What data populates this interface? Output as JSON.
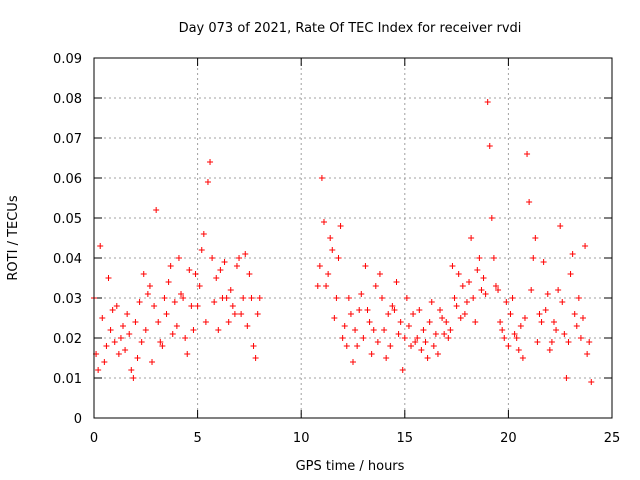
{
  "chart_data": {
    "type": "scatter",
    "title": "Day 073 of 2021, Rate Of TEC Index for receiver rvdi",
    "xlabel": "GPS time / hours",
    "ylabel": "ROTI / TECUs",
    "xlim": [
      0,
      25
    ],
    "ylim": [
      0,
      0.09
    ],
    "x_ticks": [
      "0",
      "5",
      "10",
      "15",
      "20",
      "25"
    ],
    "y_ticks": [
      "0",
      "0.01",
      "0.02",
      "0.03",
      "0.04",
      "0.05",
      "0.06",
      "0.07",
      "0.08",
      "0.09"
    ],
    "grid": true,
    "legend": false,
    "marker": "+",
    "color": "#ff0000",
    "series": [
      {
        "x": [
          0.0,
          0.1,
          0.2,
          0.3,
          0.4,
          0.5,
          0.6,
          0.7,
          0.8,
          0.9,
          1.0,
          1.1,
          1.2,
          1.3,
          1.4,
          1.5,
          1.6,
          1.7,
          1.8,
          1.9,
          2.0,
          2.1,
          2.2,
          2.3,
          2.4,
          2.5,
          2.6,
          2.7,
          2.8,
          2.9,
          3.0,
          3.1,
          3.2,
          3.3,
          3.4,
          3.5,
          3.6,
          3.7,
          3.8,
          3.9,
          4.0,
          4.1,
          4.2,
          4.3,
          4.4,
          4.5,
          4.6,
          4.7,
          4.8,
          4.9,
          5.0,
          5.1,
          5.2,
          5.3,
          5.4,
          5.5,
          5.6,
          5.7,
          5.8,
          5.9,
          6.0,
          6.1,
          6.2,
          6.3,
          6.4,
          6.5,
          6.6,
          6.7,
          6.8,
          6.9,
          7.0,
          7.1,
          7.2,
          7.3,
          7.4,
          7.5,
          7.6,
          7.7,
          7.8,
          7.9,
          8.0,
          10.8,
          10.9,
          11.0,
          11.1,
          11.2,
          11.3,
          11.4,
          11.5,
          11.6,
          11.7,
          11.8,
          11.9,
          12.0,
          12.1,
          12.2,
          12.3,
          12.4,
          12.5,
          12.6,
          12.7,
          12.8,
          12.9,
          13.0,
          13.1,
          13.2,
          13.3,
          13.4,
          13.5,
          13.6,
          13.7,
          13.8,
          13.9,
          14.0,
          14.1,
          14.2,
          14.3,
          14.4,
          14.5,
          14.6,
          14.7,
          14.8,
          14.9,
          15.0,
          15.1,
          15.2,
          15.3,
          15.4,
          15.5,
          15.6,
          15.7,
          15.8,
          15.9,
          16.0,
          16.1,
          16.2,
          16.3,
          16.4,
          16.5,
          16.6,
          16.7,
          16.8,
          16.9,
          17.0,
          17.1,
          17.2,
          17.3,
          17.4,
          17.5,
          17.6,
          17.7,
          17.8,
          17.9,
          18.0,
          18.1,
          18.2,
          18.3,
          18.4,
          18.5,
          18.6,
          18.7,
          18.8,
          18.9,
          19.0,
          19.1,
          19.2,
          19.3,
          19.4,
          19.5,
          19.6,
          19.7,
          19.8,
          19.9,
          20.0,
          20.1,
          20.2,
          20.3,
          20.4,
          20.5,
          20.6,
          20.7,
          20.8,
          20.9,
          21.0,
          21.1,
          21.2,
          21.3,
          21.4,
          21.5,
          21.6,
          21.7,
          21.8,
          21.9,
          22.0,
          22.1,
          22.2,
          22.3,
          22.4,
          22.5,
          22.6,
          22.7,
          22.8,
          22.9,
          23.0,
          23.1,
          23.2,
          23.3,
          23.4,
          23.5,
          23.6,
          23.7,
          23.8,
          23.9,
          24.0
        ],
        "y": [
          0.03,
          0.016,
          0.012,
          0.043,
          0.025,
          0.014,
          0.018,
          0.035,
          0.022,
          0.027,
          0.019,
          0.028,
          0.016,
          0.02,
          0.023,
          0.017,
          0.026,
          0.021,
          0.012,
          0.01,
          0.024,
          0.015,
          0.029,
          0.019,
          0.036,
          0.022,
          0.031,
          0.033,
          0.014,
          0.028,
          0.052,
          0.024,
          0.019,
          0.018,
          0.03,
          0.026,
          0.034,
          0.038,
          0.021,
          0.029,
          0.023,
          0.04,
          0.031,
          0.03,
          0.02,
          0.016,
          0.037,
          0.028,
          0.022,
          0.036,
          0.028,
          0.033,
          0.042,
          0.046,
          0.024,
          0.059,
          0.064,
          0.04,
          0.029,
          0.035,
          0.022,
          0.037,
          0.03,
          0.039,
          0.03,
          0.024,
          0.032,
          0.028,
          0.026,
          0.038,
          0.04,
          0.026,
          0.03,
          0.041,
          0.023,
          0.036,
          0.03,
          0.018,
          0.015,
          0.026,
          0.03,
          0.033,
          0.038,
          0.06,
          0.049,
          0.033,
          0.036,
          0.045,
          0.042,
          0.025,
          0.03,
          0.04,
          0.048,
          0.02,
          0.023,
          0.018,
          0.03,
          0.026,
          0.014,
          0.022,
          0.018,
          0.027,
          0.031,
          0.02,
          0.038,
          0.027,
          0.024,
          0.016,
          0.022,
          0.033,
          0.019,
          0.036,
          0.03,
          0.022,
          0.015,
          0.026,
          0.018,
          0.028,
          0.027,
          0.034,
          0.021,
          0.024,
          0.012,
          0.02,
          0.03,
          0.023,
          0.018,
          0.026,
          0.019,
          0.02,
          0.027,
          0.017,
          0.022,
          0.019,
          0.015,
          0.024,
          0.029,
          0.018,
          0.021,
          0.016,
          0.027,
          0.025,
          0.021,
          0.024,
          0.02,
          0.022,
          0.038,
          0.03,
          0.028,
          0.036,
          0.025,
          0.033,
          0.026,
          0.029,
          0.034,
          0.045,
          0.03,
          0.024,
          0.037,
          0.04,
          0.032,
          0.035,
          0.031,
          0.079,
          0.068,
          0.05,
          0.04,
          0.033,
          0.032,
          0.024,
          0.022,
          0.02,
          0.029,
          0.018,
          0.026,
          0.03,
          0.021,
          0.02,
          0.017,
          0.023,
          0.015,
          0.025,
          0.066,
          0.054,
          0.032,
          0.04,
          0.045,
          0.019,
          0.026,
          0.024,
          0.039,
          0.027,
          0.031,
          0.017,
          0.019,
          0.024,
          0.022,
          0.032,
          0.048,
          0.029,
          0.021,
          0.01,
          0.019,
          0.036,
          0.041,
          0.026,
          0.023,
          0.03,
          0.02,
          0.025,
          0.043,
          0.016,
          0.019,
          0.009
        ]
      }
    ]
  }
}
